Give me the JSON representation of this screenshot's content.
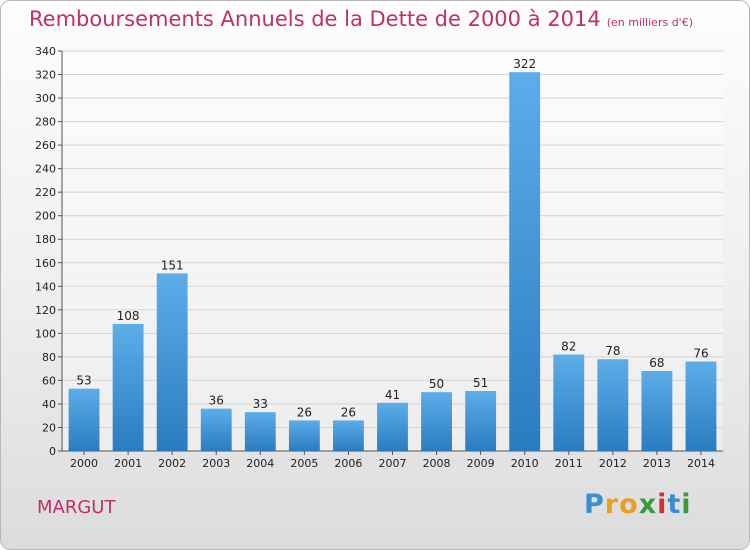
{
  "title": "Remboursements Annuels de la Dette de 2000 à 2014",
  "unit": "(en milliers d'€)",
  "commune": "MARGUT",
  "logo": {
    "letters": [
      "P",
      "r",
      "o",
      "x",
      "i",
      "t",
      "i"
    ]
  },
  "colors": {
    "title": "#c0306a",
    "bar_top": "#5dade9",
    "bar_bottom": "#2a7cc0",
    "logo": [
      "#3a8fd0",
      "#e8a020",
      "#e8a020",
      "#3a9a3a",
      "#d03030",
      "#3a8fd0",
      "#3a9a3a"
    ]
  },
  "chart_data": {
    "type": "bar",
    "title": "Remboursements Annuels de la Dette de 2000 à 2014",
    "xlabel": "",
    "ylabel": "",
    "categories": [
      "2000",
      "2001",
      "2002",
      "2003",
      "2004",
      "2005",
      "2006",
      "2007",
      "2008",
      "2009",
      "2010",
      "2011",
      "2012",
      "2013",
      "2014"
    ],
    "values": [
      53,
      108,
      151,
      36,
      33,
      26,
      26,
      41,
      50,
      51,
      322,
      82,
      78,
      68,
      76
    ],
    "ylim": [
      0,
      340
    ],
    "yticks": [
      0,
      20,
      40,
      60,
      80,
      100,
      120,
      140,
      160,
      180,
      200,
      220,
      240,
      260,
      280,
      300,
      320,
      340
    ],
    "grid": true,
    "legend": "none"
  }
}
